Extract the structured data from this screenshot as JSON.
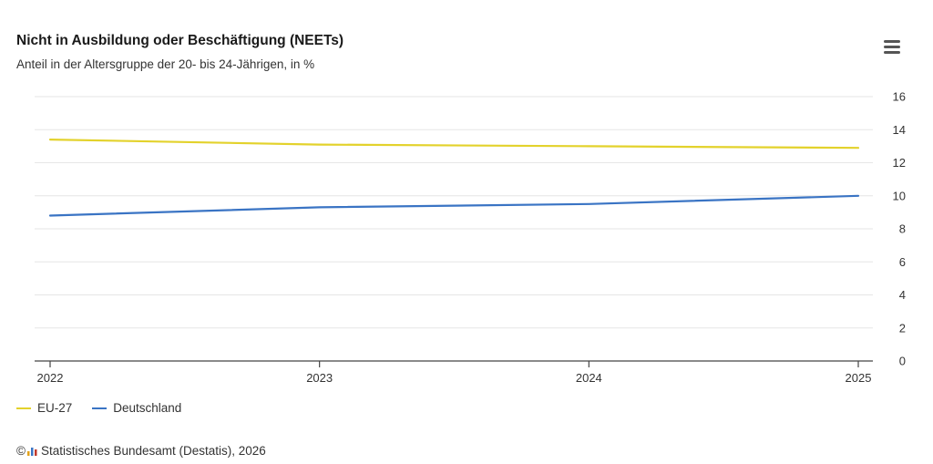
{
  "header": {
    "title": "Nicht in Ausbildung oder Beschäftigung (NEETs)",
    "subtitle": "Anteil in der Altersgruppe der 20- bis 24-Jährigen, in %",
    "menu_icon": "hamburger-menu-icon"
  },
  "chart_data": {
    "type": "line",
    "title": "Nicht in Ausbildung oder Beschäftigung (NEETs)",
    "subtitle": "Anteil in der Altersgruppe der 20- bis 24-Jährigen, in %",
    "x": [
      "2022",
      "2023",
      "2024",
      "2025"
    ],
    "xlabel": "",
    "ylabel": "",
    "ylim": [
      0,
      16
    ],
    "yticks": [
      0,
      2,
      4,
      6,
      8,
      10,
      12,
      14,
      16
    ],
    "y_axis_side": "right",
    "grid": true,
    "legend_position": "bottom-left",
    "series": [
      {
        "name": "EU-27",
        "color": "#e3d22c",
        "values": [
          13.4,
          13.1,
          13.0,
          12.9
        ]
      },
      {
        "name": "Deutschland",
        "color": "#3a74c4",
        "values": [
          8.8,
          9.3,
          9.5,
          10.0
        ]
      }
    ]
  },
  "footer": {
    "copyright_symbol": "©",
    "logo_icon": "destatis-logo-icon",
    "source": "Statistisches Bundesamt (Destatis), 2026"
  }
}
